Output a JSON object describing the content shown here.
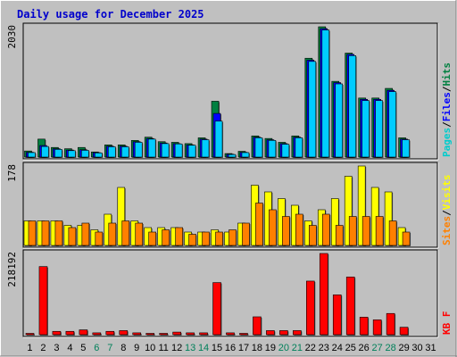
{
  "chart_data": {
    "type": "bar",
    "title": "Daily usage for December 2025",
    "days": [
      "1",
      "2",
      "3",
      "4",
      "5",
      "6",
      "7",
      "8",
      "9",
      "10",
      "11",
      "12",
      "13",
      "14",
      "15",
      "16",
      "17",
      "18",
      "19",
      "20",
      "21",
      "22",
      "23",
      "24",
      "25",
      "26",
      "27",
      "28",
      "29",
      "30",
      "31"
    ],
    "weekend_days": [
      6,
      7,
      13,
      14,
      20,
      21,
      27,
      28
    ],
    "panels": [
      {
        "name": "hits",
        "ymax_label": "2030",
        "ymax": 2030,
        "legend": [
          {
            "text": "Pages",
            "color": "#00cccc"
          },
          {
            "text": "/",
            "color": "#000000"
          },
          {
            "text": "Files",
            "color": "#0000ff"
          },
          {
            "text": "/",
            "color": "#000000"
          },
          {
            "text": "Hits",
            "color": "#008040"
          }
        ],
        "series": [
          {
            "key": "hits",
            "color": "#008040",
            "values": [
              95,
              280,
              150,
              130,
              150,
              80,
              190,
              190,
              260,
              310,
              240,
              230,
              210,
              300,
              870,
              55,
              90,
              330,
              290,
              230,
              330,
              1540,
              2030,
              1180,
              1620,
              920,
              920,
              1070,
              300,
              0,
              0
            ]
          },
          {
            "key": "files",
            "color": "#0000ff",
            "values": [
              75,
              180,
              130,
              110,
              115,
              70,
              170,
              170,
              240,
              290,
              220,
              210,
              190,
              280,
              680,
              45,
              75,
              310,
              270,
              210,
              310,
              1510,
              2000,
              1160,
              1600,
              900,
              900,
              1040,
              280,
              0,
              0
            ]
          },
          {
            "key": "pages",
            "color": "#00ccff",
            "values": [
              70,
              165,
              120,
              100,
              105,
              65,
              160,
              160,
              230,
              280,
              210,
              205,
              185,
              270,
              560,
              40,
              70,
              300,
              260,
              200,
              300,
              1490,
              1980,
              1140,
              1580,
              880,
              880,
              1020,
              270,
              0,
              0
            ]
          }
        ]
      },
      {
        "name": "visits",
        "ymax_label": "178",
        "ymax": 178,
        "legend": [
          {
            "text": "Sites",
            "color": "#ff8000"
          },
          {
            "text": "/",
            "color": "#000000"
          },
          {
            "text": "Visits",
            "color": "#ffff00"
          }
        ],
        "series": [
          {
            "key": "visits",
            "color": "#ffff00",
            "values": [
              55,
              55,
              55,
              45,
              45,
              35,
              70,
              130,
              55,
              40,
              40,
              40,
              30,
              30,
              35,
              30,
              50,
              135,
              120,
              105,
              90,
              55,
              80,
              105,
              155,
              178,
              130,
              120,
              40,
              0,
              0
            ]
          },
          {
            "key": "sites",
            "color": "#ff8000",
            "values": [
              55,
              55,
              55,
              40,
              50,
              30,
              50,
              55,
              50,
              30,
              35,
              40,
              25,
              30,
              30,
              35,
              50,
              95,
              80,
              65,
              70,
              45,
              70,
              45,
              65,
              65,
              65,
              55,
              30,
              0,
              0
            ]
          }
        ]
      },
      {
        "name": "kbytes",
        "ymax_label": "218192",
        "ymax": 218192,
        "legend": [
          {
            "text": "KB F",
            "color": "#ff0000"
          }
        ],
        "series": [
          {
            "key": "kbytes",
            "color": "#ff0000",
            "values": [
              3000,
              183000,
              9000,
              9000,
              13000,
              5000,
              9000,
              11000,
              5000,
              3000,
              3000,
              7000,
              5000,
              5000,
              140000,
              5000,
              3000,
              48000,
              11000,
              11000,
              11000,
              144000,
              218192,
              107000,
              155000,
              47000,
              40000,
              57000,
              20000,
              0,
              0
            ]
          }
        ]
      }
    ]
  }
}
